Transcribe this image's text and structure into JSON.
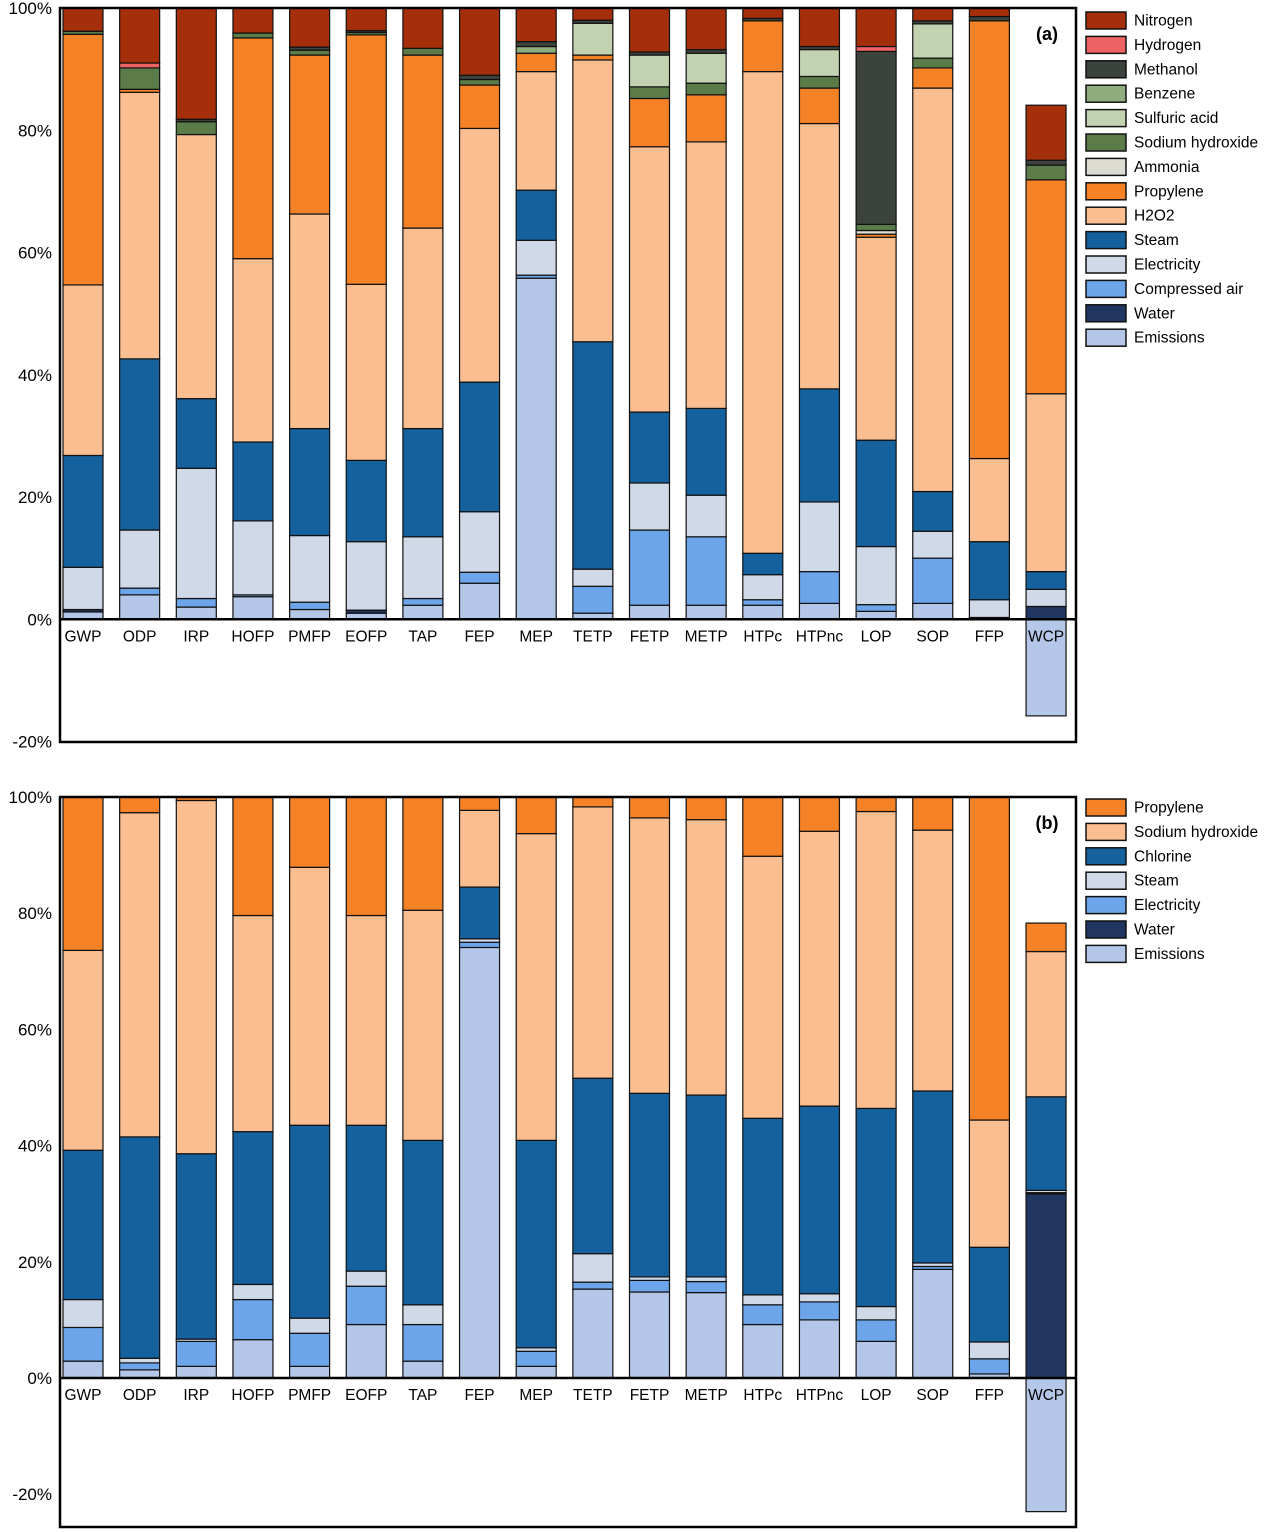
{
  "figure": {
    "panels": [
      {
        "label": "(a)"
      },
      {
        "label": "(b)"
      }
    ]
  },
  "chart_data": [
    {
      "type": "bar",
      "stacked": true,
      "panel_label": "(a)",
      "normalized": "percent",
      "grid": false,
      "legend_position": "right-outside",
      "ylim": [
        -20,
        100
      ],
      "y_ticks": [
        {
          "value": 100,
          "label": "100%"
        },
        {
          "value": 80,
          "label": "80%"
        },
        {
          "value": 60,
          "label": "60%"
        },
        {
          "value": 40,
          "label": "40%"
        },
        {
          "value": 20,
          "label": "20%"
        },
        {
          "value": 0,
          "label": "0%"
        },
        {
          "value": -20,
          "label": "-20%"
        }
      ],
      "categories": [
        "GWP",
        "ODP",
        "IRP",
        "HOFP",
        "PMFP",
        "EOFP",
        "TAP",
        "FEP",
        "MEP",
        "TETP",
        "FETP",
        "METP",
        "HTPc",
        "HTPnc",
        "LOP",
        "SOP",
        "FFP",
        "WCP"
      ],
      "series": [
        {
          "name": "Nitrogen",
          "color": "#A52F0B",
          "values": [
            3.8,
            9.0,
            18.2,
            4.1,
            6.4,
            3.7,
            6.6,
            11.0,
            5.5,
            2.0,
            7.2,
            6.8,
            1.7,
            6.3,
            6.3,
            2.1,
            1.4,
            9.0
          ]
        },
        {
          "name": "Hydrogen",
          "color": "#F06365",
          "values": [
            0,
            0.8,
            0,
            0,
            0,
            0,
            0,
            0,
            0,
            0,
            0,
            0,
            0,
            0,
            0.8,
            0,
            0,
            0
          ]
        },
        {
          "name": "Methanol",
          "color": "#3C433C",
          "values": [
            0,
            0,
            0.4,
            0,
            0.5,
            0.3,
            0,
            0.7,
            0.8,
            0.5,
            0.5,
            0.6,
            0.4,
            0.5,
            28.3,
            0.5,
            0.7,
            0.8
          ]
        },
        {
          "name": "Benzene",
          "color": "#8FAC7F",
          "values": [
            0,
            0,
            0,
            0,
            0,
            0,
            0,
            0,
            1.1,
            0,
            0,
            0,
            0,
            0,
            0,
            0,
            0,
            0
          ]
        },
        {
          "name": "Sulfuric acid",
          "color": "#C3D3B2",
          "values": [
            0,
            0,
            0,
            0,
            0,
            0,
            0,
            0,
            0,
            5.2,
            5.2,
            4.9,
            0,
            4.4,
            0,
            5.6,
            0,
            0
          ]
        },
        {
          "name": "Sodium hydroxide",
          "color": "#5B7C48",
          "values": [
            0.5,
            3.5,
            2.1,
            0.8,
            0.8,
            0.4,
            1.1,
            0.9,
            0,
            0,
            1.9,
            1.9,
            0,
            1.9,
            1.0,
            1.6,
            0,
            2.4
          ]
        },
        {
          "name": "Ammonia",
          "color": "#DCDCD2",
          "values": [
            0,
            0,
            0,
            0,
            0,
            0,
            0,
            0,
            0,
            0,
            0,
            0,
            0,
            0,
            0.6,
            0,
            0,
            0
          ]
        },
        {
          "name": "Propylene",
          "color": "#F58227",
          "values": [
            41.0,
            0.5,
            0,
            36.1,
            26.0,
            40.8,
            28.3,
            7.1,
            3.0,
            0.8,
            7.9,
            7.7,
            8.3,
            5.8,
            0.5,
            3.3,
            71.6,
            35.0
          ]
        },
        {
          "name": "H2O2",
          "color": "#FBBE90",
          "values": [
            27.9,
            43.6,
            43.2,
            30.0,
            35.1,
            28.8,
            32.8,
            41.5,
            19.4,
            46.1,
            43.4,
            43.6,
            78.8,
            43.4,
            33.2,
            66.0,
            13.6,
            29.1
          ]
        },
        {
          "name": "Steam",
          "color": "#15619E",
          "values": [
            18.3,
            28.0,
            11.4,
            12.9,
            17.5,
            13.3,
            17.7,
            21.2,
            8.2,
            37.2,
            11.6,
            14.2,
            3.5,
            18.5,
            17.4,
            6.5,
            9.5,
            2.9
          ]
        },
        {
          "name": "Electricity",
          "color": "#D0D9E8",
          "values": [
            6.9,
            9.5,
            21.3,
            12.1,
            10.9,
            11.2,
            10.1,
            9.9,
            5.7,
            2.8,
            7.7,
            6.8,
            4.1,
            11.4,
            9.5,
            4.4,
            2.9,
            2.8
          ]
        },
        {
          "name": "Compressed air",
          "color": "#6CA5E9",
          "values": [
            0,
            1.1,
            1.4,
            0.3,
            1.2,
            0,
            1.1,
            1.8,
            0.5,
            4.4,
            12.3,
            11.2,
            0.9,
            5.2,
            1.1,
            7.4,
            0,
            0
          ]
        },
        {
          "name": "Water",
          "color": "#20355F",
          "values": [
            0.4,
            0,
            0,
            0,
            0,
            0.5,
            0,
            0,
            0,
            0,
            0,
            0,
            0,
            0,
            0,
            0,
            0,
            2.1
          ]
        },
        {
          "name": "Emissions",
          "color": "#B5C7E8",
          "values": [
            1.2,
            4.0,
            2.0,
            3.7,
            1.6,
            1.0,
            2.3,
            5.9,
            55.8,
            1.0,
            2.3,
            2.3,
            2.3,
            2.6,
            1.3,
            2.6,
            0.3,
            -15.8
          ]
        }
      ]
    },
    {
      "type": "bar",
      "stacked": true,
      "panel_label": "(b)",
      "normalized": "percent",
      "grid": false,
      "legend_position": "right-outside",
      "ylim": [
        -20,
        100
      ],
      "y_ticks": [
        {
          "value": 100,
          "label": "100%"
        },
        {
          "value": 80,
          "label": "80%"
        },
        {
          "value": 60,
          "label": "60%"
        },
        {
          "value": 40,
          "label": "40%"
        },
        {
          "value": 20,
          "label": "20%"
        },
        {
          "value": 0,
          "label": "0%"
        },
        {
          "value": -20,
          "label": "-20%"
        }
      ],
      "categories": [
        "GWP",
        "ODP",
        "IRP",
        "HOFP",
        "PMFP",
        "EOFP",
        "TAP",
        "FEP",
        "MEP",
        "TETP",
        "FETP",
        "METP",
        "HTPc",
        "HTPnc",
        "LOP",
        "SOP",
        "FFP",
        "WCP"
      ],
      "series": [
        {
          "name": "Propylene",
          "color": "#F58227",
          "values": [
            26.4,
            2.7,
            0.6,
            20.4,
            12.1,
            20.4,
            19.5,
            2.3,
            6.3,
            1.7,
            3.6,
            3.9,
            10.2,
            5.9,
            2.5,
            5.7,
            55.6,
            4.9
          ]
        },
        {
          "name": "Sodium hydroxide",
          "color": "#FBBE90",
          "values": [
            34.4,
            55.8,
            60.8,
            37.2,
            44.4,
            36.1,
            39.6,
            13.2,
            52.8,
            46.7,
            47.4,
            47.4,
            45.1,
            47.3,
            51.1,
            44.9,
            21.9,
            25.0
          ]
        },
        {
          "name": "Chlorine",
          "color": "#15619E",
          "values": [
            25.7,
            38.1,
            31.9,
            26.3,
            33.2,
            25.1,
            28.3,
            8.9,
            35.7,
            30.2,
            31.6,
            31.3,
            30.4,
            32.3,
            34.1,
            29.6,
            16.3,
            16.1
          ]
        },
        {
          "name": "Steam",
          "color": "#D0D9E8",
          "values": [
            4.8,
            0.8,
            0.4,
            2.6,
            2.6,
            2.6,
            3.4,
            0.6,
            0.6,
            4.9,
            0.6,
            0.8,
            1.7,
            1.4,
            2.3,
            0.6,
            2.9,
            0.4
          ]
        },
        {
          "name": "Electricity",
          "color": "#6CA5E9",
          "values": [
            5.8,
            1.2,
            4.3,
            6.9,
            5.7,
            6.6,
            6.3,
            0.9,
            2.6,
            1.2,
            2.0,
            1.9,
            3.4,
            3.1,
            3.7,
            0.5,
            2.6,
            0.2
          ]
        },
        {
          "name": "Water",
          "color": "#20355F",
          "values": [
            0,
            0,
            0,
            0,
            0,
            0,
            0,
            0,
            0,
            0,
            0,
            0,
            0,
            0,
            0,
            0,
            0,
            31.7
          ]
        },
        {
          "name": "Emissions",
          "color": "#B5C7E8",
          "values": [
            2.9,
            1.4,
            2.0,
            6.6,
            2.0,
            9.2,
            2.9,
            74.1,
            2.0,
            15.3,
            14.8,
            14.7,
            9.2,
            10.0,
            6.3,
            18.7,
            0.7,
            -23.0
          ]
        }
      ]
    }
  ]
}
